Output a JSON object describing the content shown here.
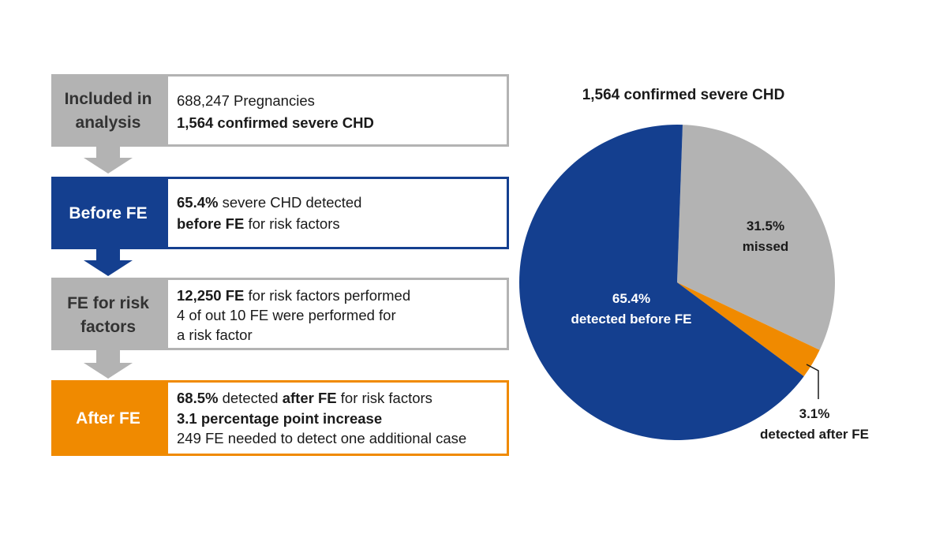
{
  "steps": [
    {
      "label": [
        "Included in",
        "analysis"
      ],
      "lines": [
        [
          "688,247 Pregnancies"
        ],
        [
          "1,564 confirmed severe CHD"
        ]
      ]
    },
    {
      "label": [
        "Before FE"
      ],
      "lines": [
        [
          "65.4%",
          " severe CHD detected"
        ],
        [
          "before FE",
          " for risk factors"
        ]
      ]
    },
    {
      "label": [
        "FE for risk",
        "factors"
      ],
      "lines": [
        [
          "12,250 FE",
          " for risk factors performed"
        ],
        [
          "4 of out 10 FE were performed for"
        ],
        [
          "a risk factor"
        ]
      ]
    },
    {
      "label": [
        "After FE"
      ],
      "lines": [
        [
          "68.5%",
          " detected ",
          "after FE",
          " for risk factors"
        ],
        [
          "3.1 percentage point increase"
        ],
        [
          "249 FE needed to detect one additional case"
        ]
      ]
    }
  ],
  "chart_data": {
    "type": "pie",
    "title": "1,564 confirmed severe CHD",
    "categories": [
      "missed",
      "detected after FE",
      "detected before FE"
    ],
    "values": [
      31.5,
      3.1,
      65.4
    ],
    "value_labels": [
      "31.5%",
      "3.1%",
      "65.4%"
    ],
    "colors": [
      "#b3b3b3",
      "#f08a00",
      "#143f8f"
    ]
  }
}
